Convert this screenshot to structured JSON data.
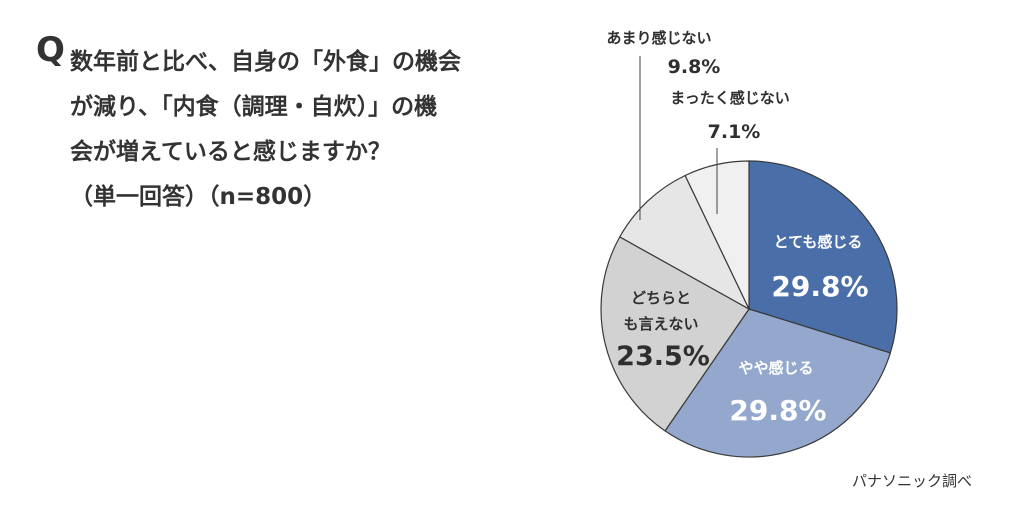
{
  "question": {
    "mark": "Q",
    "lines": [
      "数年前と比べ、自身の「外食」の機会",
      "が減り、「内食（調理・自炊）」の機",
      "会が増えていると感じますか？",
      "（単一回答）（n=800）"
    ]
  },
  "source": "パナソニック調べ",
  "chart_data": {
    "type": "pie",
    "start_angle_deg": 0,
    "direction": "clockwise",
    "slices": [
      {
        "label": "とても感じる",
        "value": 29.8,
        "display": "29.8%",
        "color": "#4a6ea8",
        "text_color": "#ffffff"
      },
      {
        "label": "やや感じる",
        "value": 29.8,
        "display": "29.8%",
        "color": "#93a8cc",
        "text_color": "#ffffff"
      },
      {
        "label": "どちらとも言えない",
        "value": 23.5,
        "display": "23.5%",
        "color": "#d2d2d2",
        "text_color": "#2f2f2f"
      },
      {
        "label": "あまり感じない",
        "value": 9.8,
        "display": "9.8%",
        "color": "#e6e6e6",
        "text_color": "#2f2f2f"
      },
      {
        "label": "まったく感じない",
        "value": 7.1,
        "display": "7.1%",
        "color": "#f0f0f0",
        "text_color": "#2f2f2f"
      }
    ]
  }
}
